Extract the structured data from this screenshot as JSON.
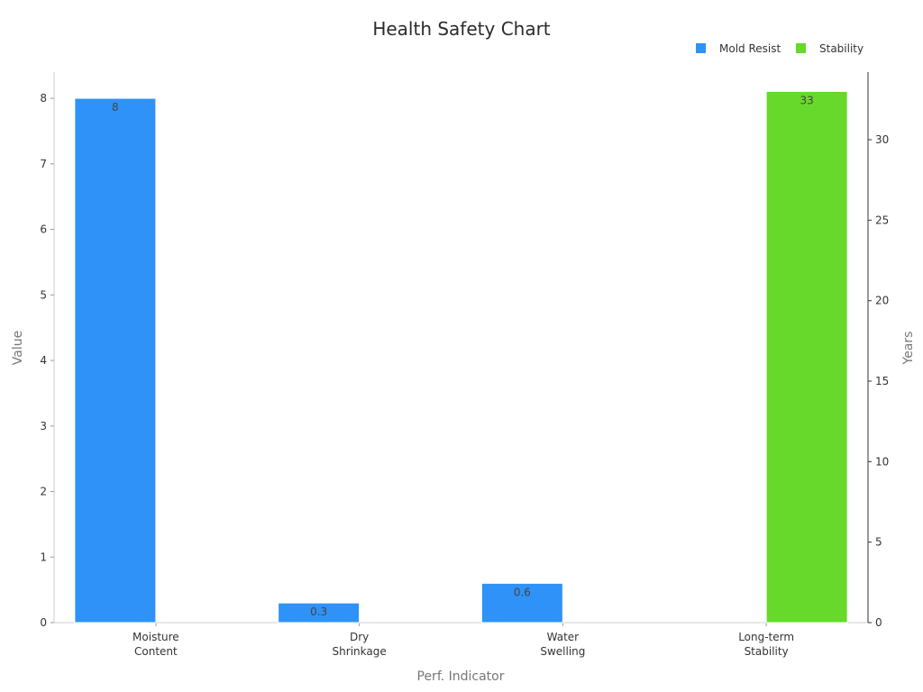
{
  "chart_data": {
    "type": "bar",
    "title": "Health Safety Chart",
    "xlabel": "Perf. Indicator",
    "ylabel": "Value",
    "y2label": "Years",
    "categories": [
      "Moisture\nContent",
      "Dry\nShrinkage",
      "Water\nSwelling",
      "Long-term\nStability"
    ],
    "series": [
      {
        "name": "Mold Resist",
        "axis": "left",
        "color": "#2f92f8",
        "values": [
          8,
          0.3,
          0.6,
          null
        ],
        "labels": [
          "8",
          "0.3",
          "0.6",
          ""
        ]
      },
      {
        "name": "Stability",
        "axis": "right",
        "color": "#66d92b",
        "values": [
          null,
          null,
          null,
          33
        ],
        "labels": [
          "",
          "",
          "",
          "33"
        ]
      }
    ],
    "ylim": [
      0,
      8.4
    ],
    "y2lim": [
      0,
      34.2
    ],
    "yticks": [
      0,
      1,
      2,
      3,
      4,
      5,
      6,
      7,
      8
    ],
    "y2ticks": [
      0,
      5,
      10,
      15,
      20,
      25,
      30
    ],
    "legend_position": "top-right",
    "grid": false
  }
}
